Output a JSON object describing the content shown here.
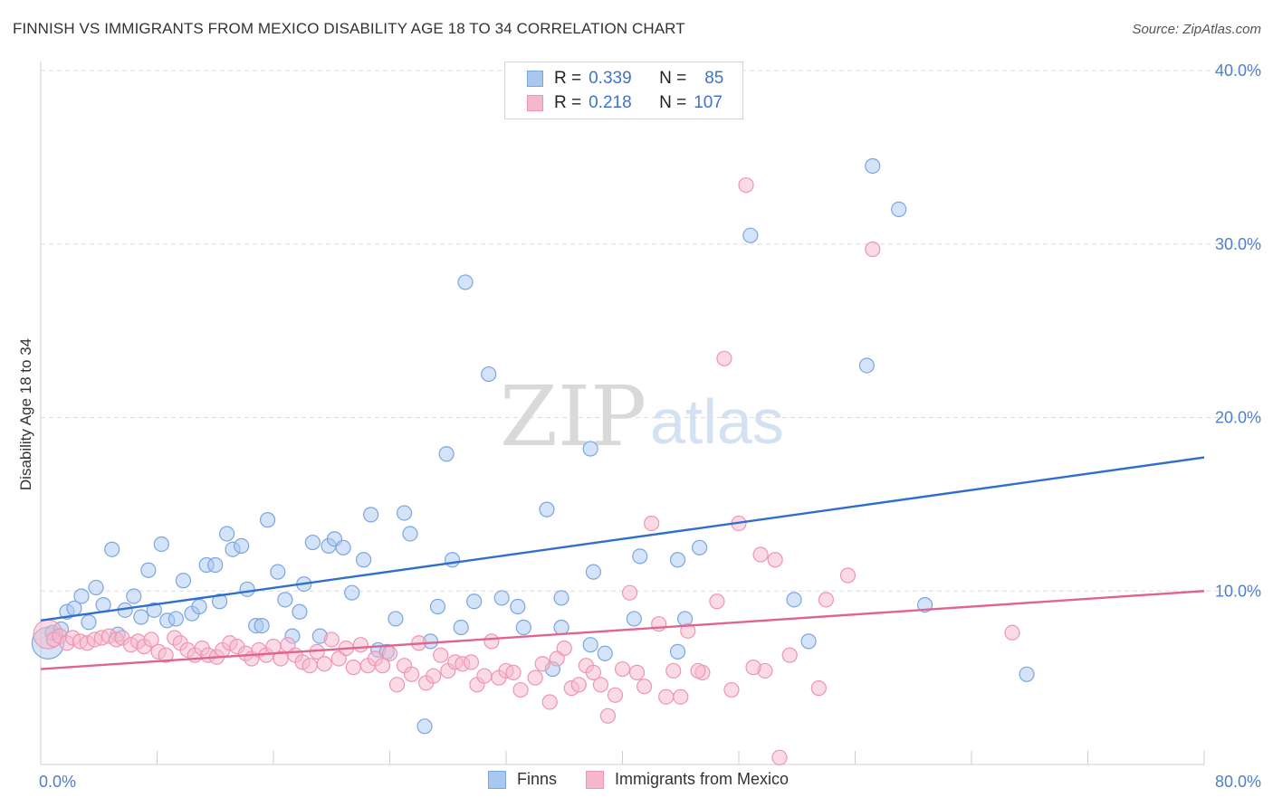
{
  "header": {
    "title": "FINNISH VS IMMIGRANTS FROM MEXICO DISABILITY AGE 18 TO 34 CORRELATION CHART",
    "source": "Source: ZipAtlas.com"
  },
  "legend": {
    "rows": [
      {
        "r_label": "R =",
        "r_value": "0.339",
        "n_label": "N =",
        "n_value": "85"
      },
      {
        "r_label": "R =",
        "r_value": "0.218",
        "n_label": "N =",
        "n_value": "107"
      }
    ],
    "bottom": [
      {
        "label": "Finns"
      },
      {
        "label": "Immigrants from Mexico"
      }
    ]
  },
  "watermark": {
    "zip": "ZIP",
    "atlas": "atlas"
  },
  "colors": {
    "finns_fill": "#a9c8ef",
    "finns_stroke": "#7aa6e0",
    "finns_line": "#2e6fcc",
    "mex_fill": "#f5b8cb",
    "mex_stroke": "#ee95b2",
    "mex_line": "#e0648f",
    "tick_text": "#4f7fcb",
    "grid": "#dcdcdc"
  },
  "chart_data": {
    "type": "scatter",
    "title": "FINNISH VS IMMIGRANTS FROM MEXICO DISABILITY AGE 18 TO 34 CORRELATION CHART",
    "xlabel": "",
    "ylabel": "Disability Age 18 to 34",
    "xlim": [
      0,
      80
    ],
    "ylim": [
      0,
      40
    ],
    "x_tick_labels": [
      "0.0%",
      "80.0%"
    ],
    "y_ticks": [
      10,
      20,
      30,
      40
    ],
    "y_tick_labels": [
      "10.0%",
      "20.0%",
      "30.0%",
      "40.0%"
    ],
    "grid": true,
    "series": [
      {
        "name": "Finns",
        "r": 0.339,
        "n": 85,
        "trend": {
          "x": [
            0,
            80
          ],
          "y": [
            8.3,
            17.7
          ]
        },
        "points": [
          [
            0.5,
            7.0,
            2.2
          ],
          [
            0.8,
            7.6,
            1
          ],
          [
            1.4,
            7.8,
            1
          ],
          [
            1.8,
            8.8,
            1
          ],
          [
            2.3,
            9.0,
            1
          ],
          [
            2.8,
            9.7,
            1
          ],
          [
            3.3,
            8.2,
            1
          ],
          [
            3.8,
            10.2,
            1
          ],
          [
            4.3,
            9.2,
            1
          ],
          [
            4.9,
            12.4,
            1
          ],
          [
            5.3,
            7.5,
            1
          ],
          [
            5.8,
            8.9,
            1
          ],
          [
            6.4,
            9.7,
            1
          ],
          [
            6.9,
            8.5,
            1
          ],
          [
            7.4,
            11.2,
            1
          ],
          [
            7.8,
            8.9,
            1
          ],
          [
            8.3,
            12.7,
            1
          ],
          [
            8.7,
            8.3,
            1
          ],
          [
            9.3,
            8.4,
            1
          ],
          [
            9.8,
            10.6,
            1
          ],
          [
            10.4,
            8.7,
            1
          ],
          [
            10.9,
            9.1,
            1
          ],
          [
            11.4,
            11.5,
            1
          ],
          [
            12.0,
            11.5,
            1
          ],
          [
            12.3,
            9.4,
            1
          ],
          [
            12.8,
            13.3,
            1
          ],
          [
            13.2,
            12.4,
            1
          ],
          [
            13.8,
            12.6,
            1
          ],
          [
            14.2,
            10.1,
            1
          ],
          [
            14.8,
            8.0,
            1
          ],
          [
            15.2,
            8.0,
            1
          ],
          [
            15.6,
            14.1,
            1
          ],
          [
            16.3,
            11.1,
            1
          ],
          [
            16.8,
            9.5,
            1
          ],
          [
            17.3,
            7.4,
            1
          ],
          [
            17.8,
            8.8,
            1
          ],
          [
            18.1,
            10.4,
            1
          ],
          [
            18.7,
            12.8,
            1
          ],
          [
            19.2,
            7.4,
            1
          ],
          [
            19.8,
            12.6,
            1
          ],
          [
            20.2,
            13.0,
            1
          ],
          [
            20.8,
            12.5,
            1
          ],
          [
            21.4,
            9.9,
            1
          ],
          [
            22.2,
            11.8,
            1
          ],
          [
            22.7,
            14.4,
            1
          ],
          [
            23.2,
            6.6,
            1
          ],
          [
            23.8,
            6.5,
            1
          ],
          [
            24.4,
            8.4,
            1
          ],
          [
            25.0,
            14.5,
            1
          ],
          [
            25.4,
            13.3,
            1
          ],
          [
            26.4,
            2.2,
            1
          ],
          [
            26.8,
            7.1,
            1
          ],
          [
            27.3,
            9.1,
            1
          ],
          [
            27.9,
            17.9,
            1
          ],
          [
            28.3,
            11.8,
            1
          ],
          [
            28.9,
            7.9,
            1
          ],
          [
            29.2,
            27.8,
            1
          ],
          [
            29.8,
            9.4,
            1
          ],
          [
            30.8,
            22.5,
            1
          ],
          [
            31.7,
            9.6,
            1
          ],
          [
            32.8,
            9.1,
            1
          ],
          [
            33.2,
            7.9,
            1
          ],
          [
            34.8,
            14.7,
            1
          ],
          [
            35.2,
            5.5,
            1
          ],
          [
            35.8,
            9.6,
            1
          ],
          [
            35.8,
            7.9,
            1
          ],
          [
            37.8,
            6.9,
            1
          ],
          [
            37.8,
            18.2,
            1
          ],
          [
            38.0,
            11.1,
            1
          ],
          [
            38.8,
            6.4,
            1
          ],
          [
            40.8,
            8.4,
            1
          ],
          [
            41.2,
            12.0,
            1
          ],
          [
            43.8,
            11.8,
            1
          ],
          [
            43.8,
            6.5,
            1
          ],
          [
            44.3,
            8.4,
            1
          ],
          [
            45.3,
            12.5,
            1
          ],
          [
            48.8,
            30.5,
            1
          ],
          [
            51.8,
            9.5,
            1
          ],
          [
            52.8,
            7.1,
            1
          ],
          [
            56.8,
            23.0,
            1
          ],
          [
            57.2,
            34.5,
            1
          ],
          [
            59.0,
            32.0,
            1
          ],
          [
            60.8,
            9.2,
            1
          ],
          [
            67.8,
            5.2,
            1
          ],
          [
            60.0,
            9.1,
            0
          ]
        ]
      },
      {
        "name": "Immigrants from Mexico",
        "r": 0.218,
        "n": 107,
        "trend": {
          "x": [
            0,
            80
          ],
          "y": [
            5.5,
            10.0
          ]
        },
        "points": [
          [
            0.5,
            7.5,
            2.0
          ],
          [
            0.9,
            7.2,
            1
          ],
          [
            1.3,
            7.4,
            1
          ],
          [
            1.8,
            7.0,
            1
          ],
          [
            2.2,
            7.3,
            1
          ],
          [
            2.7,
            7.1,
            1
          ],
          [
            3.2,
            7.0,
            1
          ],
          [
            3.7,
            7.2,
            1
          ],
          [
            4.2,
            7.3,
            1
          ],
          [
            4.7,
            7.4,
            1
          ],
          [
            5.2,
            7.2,
            1
          ],
          [
            5.6,
            7.3,
            1
          ],
          [
            6.2,
            6.9,
            1
          ],
          [
            6.7,
            7.1,
            1
          ],
          [
            7.1,
            6.8,
            1
          ],
          [
            7.6,
            7.2,
            1
          ],
          [
            8.1,
            6.5,
            1
          ],
          [
            8.6,
            6.3,
            1
          ],
          [
            9.2,
            7.3,
            1
          ],
          [
            9.6,
            7.0,
            1
          ],
          [
            10.1,
            6.6,
            1
          ],
          [
            10.6,
            6.3,
            1
          ],
          [
            11.1,
            6.7,
            1
          ],
          [
            11.5,
            6.3,
            1
          ],
          [
            12.1,
            6.2,
            1
          ],
          [
            12.5,
            6.6,
            1
          ],
          [
            13.0,
            7.0,
            1
          ],
          [
            13.5,
            6.8,
            1
          ],
          [
            14.1,
            6.4,
            1
          ],
          [
            14.5,
            6.1,
            1
          ],
          [
            15.0,
            6.6,
            1
          ],
          [
            15.5,
            6.3,
            1
          ],
          [
            16.0,
            6.8,
            1
          ],
          [
            16.5,
            6.1,
            1
          ],
          [
            17.0,
            6.9,
            1
          ],
          [
            17.5,
            6.3,
            1
          ],
          [
            18.0,
            5.9,
            1
          ],
          [
            18.5,
            5.7,
            1
          ],
          [
            19.0,
            6.5,
            1
          ],
          [
            19.5,
            5.8,
            1
          ],
          [
            20.0,
            7.2,
            1
          ],
          [
            20.5,
            6.1,
            1
          ],
          [
            21.0,
            6.7,
            1
          ],
          [
            21.5,
            5.6,
            1
          ],
          [
            22.0,
            6.9,
            1
          ],
          [
            22.5,
            5.7,
            1
          ],
          [
            23.0,
            6.1,
            1
          ],
          [
            23.5,
            5.7,
            1
          ],
          [
            24.0,
            6.4,
            1
          ],
          [
            24.5,
            4.6,
            1
          ],
          [
            25.0,
            5.7,
            1
          ],
          [
            25.5,
            5.2,
            1
          ],
          [
            26.0,
            7.0,
            1
          ],
          [
            26.5,
            4.7,
            1
          ],
          [
            27.0,
            5.1,
            1
          ],
          [
            27.5,
            6.3,
            1
          ],
          [
            28.0,
            5.4,
            1
          ],
          [
            28.5,
            5.9,
            1
          ],
          [
            29.0,
            5.8,
            1
          ],
          [
            29.6,
            5.9,
            1
          ],
          [
            30.0,
            4.6,
            1
          ],
          [
            30.5,
            5.1,
            1
          ],
          [
            31.0,
            7.1,
            1
          ],
          [
            31.5,
            5.0,
            1
          ],
          [
            32.0,
            5.4,
            1
          ],
          [
            32.5,
            5.3,
            1
          ],
          [
            33.0,
            4.3,
            1
          ],
          [
            34.0,
            5.0,
            1
          ],
          [
            34.5,
            5.8,
            1
          ],
          [
            35.0,
            3.6,
            1
          ],
          [
            35.5,
            6.1,
            1
          ],
          [
            36.0,
            6.7,
            1
          ],
          [
            36.5,
            4.4,
            1
          ],
          [
            37.0,
            4.6,
            1
          ],
          [
            37.5,
            5.7,
            1
          ],
          [
            38.0,
            5.3,
            1
          ],
          [
            38.5,
            4.6,
            1
          ],
          [
            39.0,
            2.8,
            1
          ],
          [
            39.5,
            4.0,
            1
          ],
          [
            40.0,
            5.5,
            1
          ],
          [
            40.5,
            9.9,
            1
          ],
          [
            41.0,
            5.3,
            1
          ],
          [
            41.5,
            4.5,
            1
          ],
          [
            42.0,
            13.9,
            1
          ],
          [
            42.5,
            8.1,
            1
          ],
          [
            43.0,
            3.9,
            1
          ],
          [
            43.5,
            5.4,
            1
          ],
          [
            44.0,
            3.9,
            1
          ],
          [
            44.5,
            7.7,
            1
          ],
          [
            45.5,
            5.3,
            1
          ],
          [
            46.5,
            9.4,
            1
          ],
          [
            47.0,
            23.4,
            1
          ],
          [
            47.5,
            4.3,
            1
          ],
          [
            48.0,
            13.9,
            1
          ],
          [
            48.5,
            33.4,
            1
          ],
          [
            49.5,
            12.1,
            1
          ],
          [
            49.8,
            5.4,
            1
          ],
          [
            50.5,
            11.8,
            1
          ],
          [
            51.5,
            6.3,
            1
          ],
          [
            53.5,
            4.4,
            1
          ],
          [
            54.0,
            9.5,
            1
          ],
          [
            55.5,
            10.9,
            1
          ],
          [
            57.2,
            29.7,
            1
          ],
          [
            66.8,
            7.6,
            1
          ],
          [
            50.8,
            0.4,
            1
          ],
          [
            49.0,
            5.6,
            1
          ],
          [
            45.2,
            5.4,
            1
          ]
        ]
      }
    ]
  }
}
